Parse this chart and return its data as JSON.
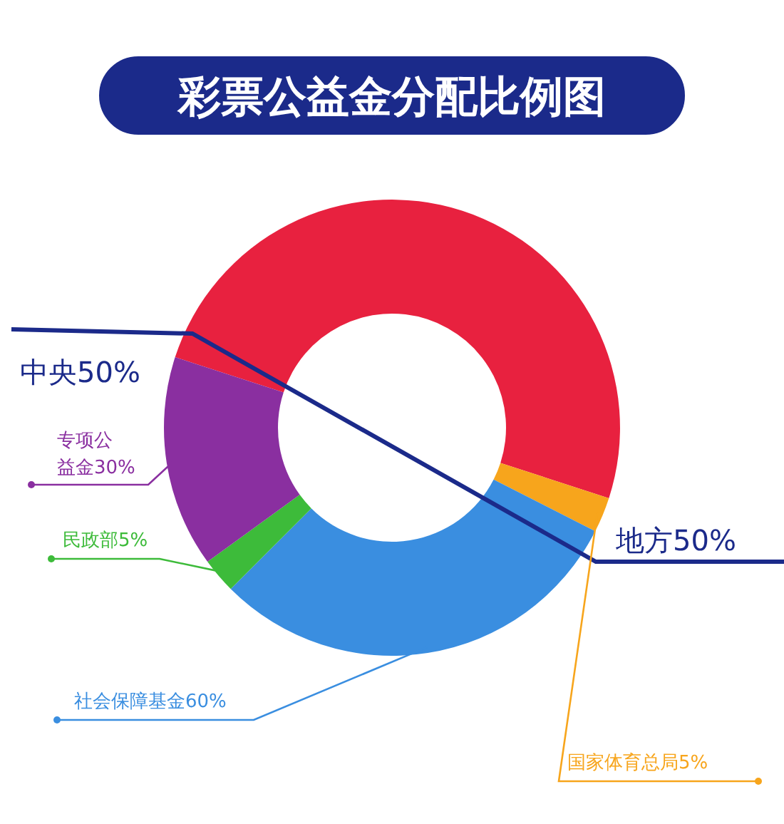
{
  "chart_data": {
    "type": "donut",
    "title": "彩票公益金分配比例图",
    "categories": [
      "地方50%",
      "国家体育总局5%",
      "社会保障基金60%",
      "民政部5%",
      "专项公益金30%"
    ],
    "values": [
      50,
      2.5,
      30,
      2.5,
      15
    ],
    "colors": [
      "#e8213f",
      "#f7a51c",
      "#3a8ee0",
      "#3dbb3a",
      "#8a2fa0"
    ],
    "annotations": [
      "中央50%"
    ]
  }
}
